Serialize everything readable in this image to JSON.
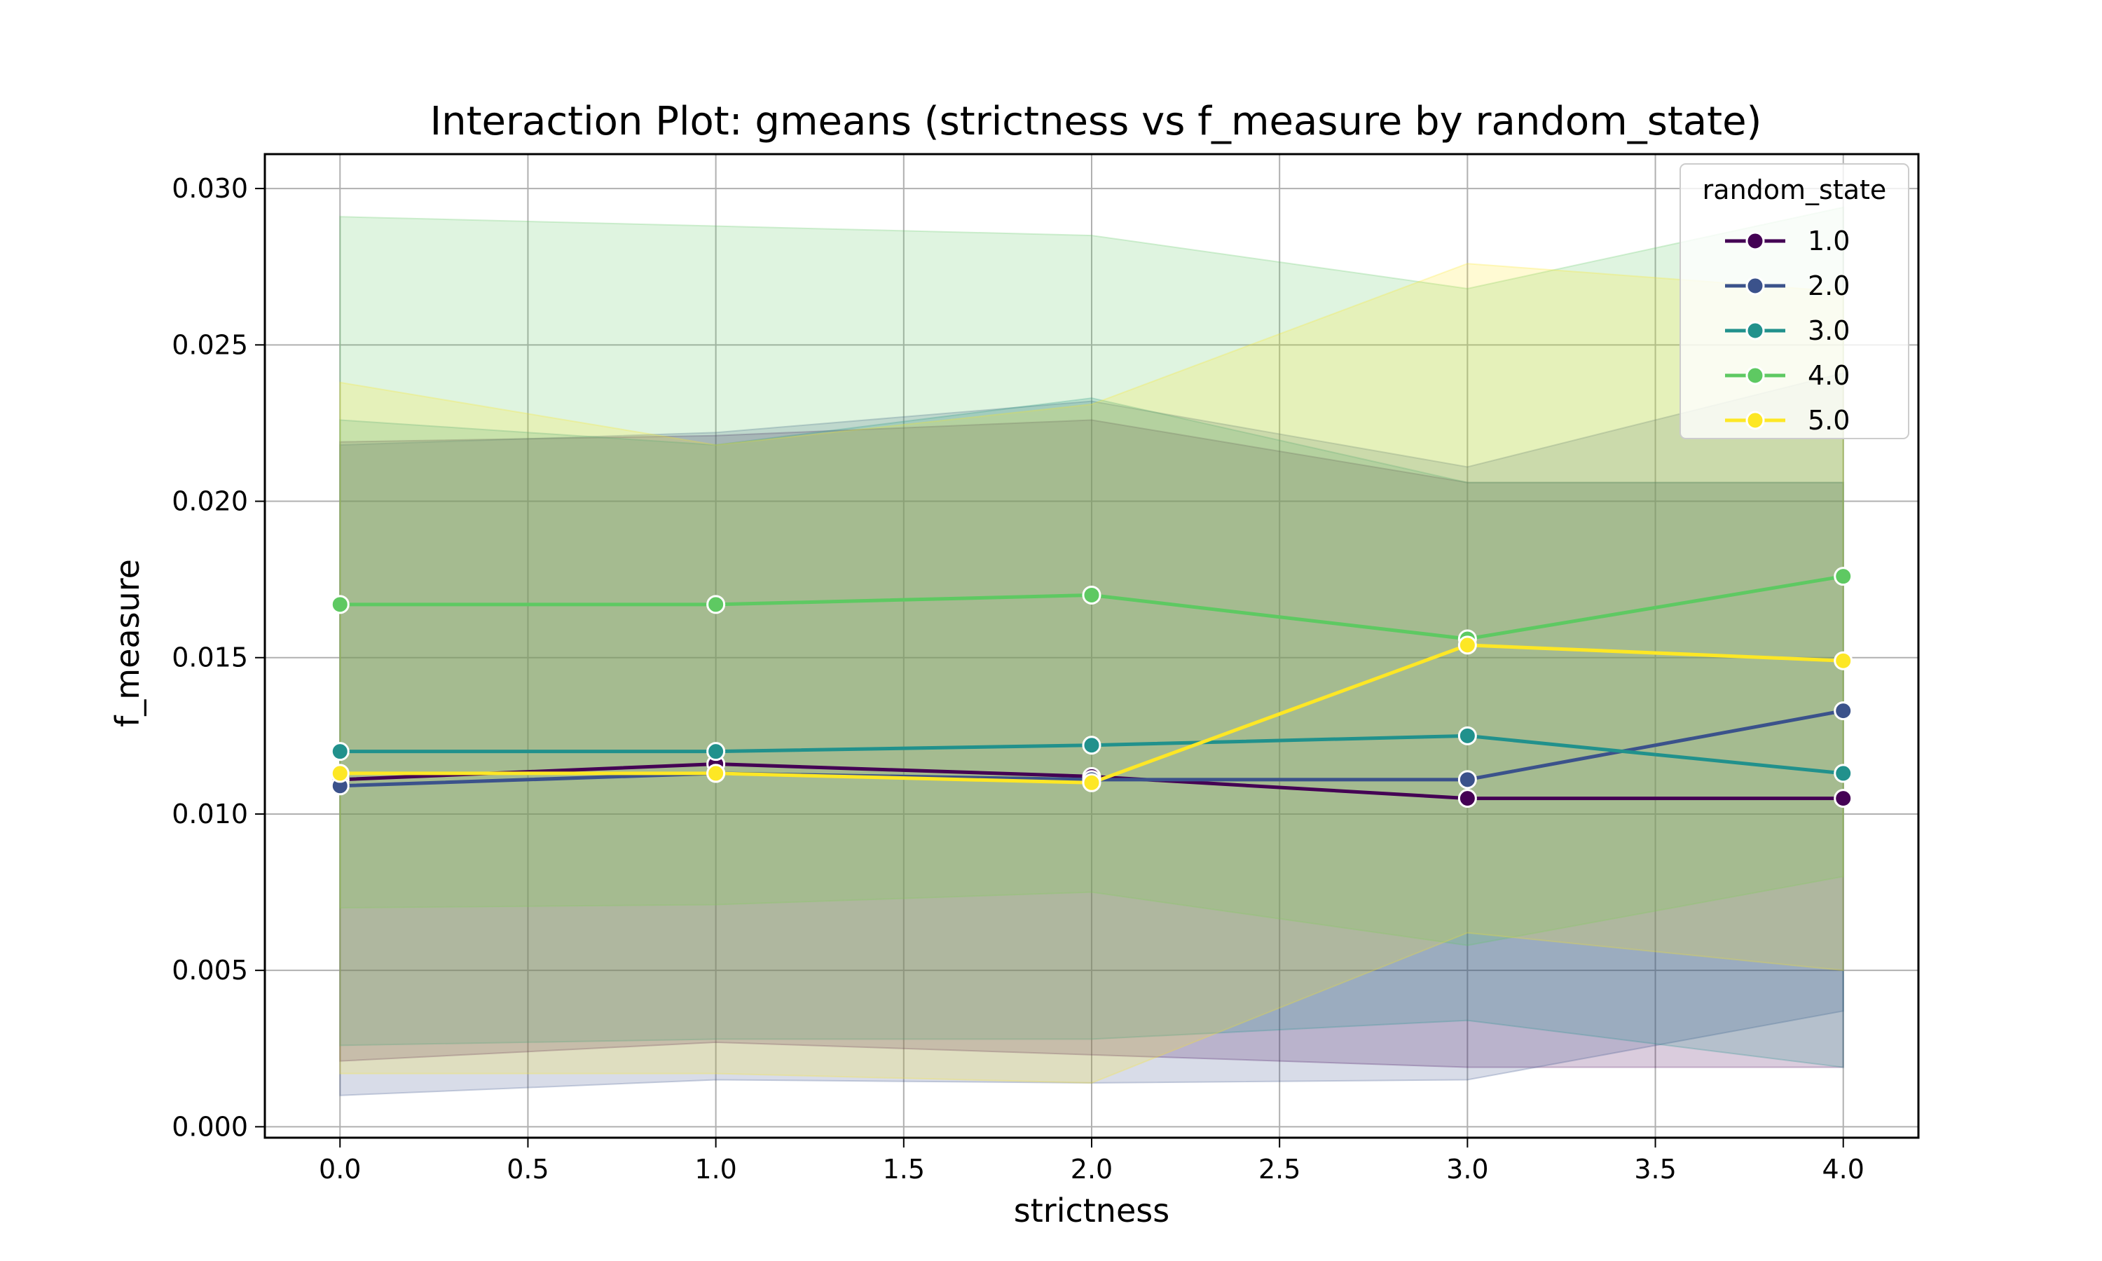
{
  "chart_data": {
    "type": "line",
    "title": "Interaction Plot: gmeans (strictness vs f_measure by random_state)",
    "xlabel": "strictness",
    "ylabel": "f_measure",
    "x": [
      0.0,
      1.0,
      2.0,
      3.0,
      4.0
    ],
    "xlim": [
      -0.2,
      4.2
    ],
    "ylim": [
      -0.00035,
      0.0311
    ],
    "xticks": [
      0.0,
      0.5,
      1.0,
      1.5,
      2.0,
      2.5,
      3.0,
      3.5,
      4.0
    ],
    "yticks": [
      0.0,
      0.005,
      0.01,
      0.015,
      0.02,
      0.025,
      0.03
    ],
    "xtick_labels": [
      "0.0",
      "0.5",
      "1.0",
      "1.5",
      "2.0",
      "2.5",
      "3.0",
      "3.5",
      "4.0"
    ],
    "ytick_labels": [
      "0.000",
      "0.005",
      "0.010",
      "0.015",
      "0.020",
      "0.025",
      "0.030"
    ],
    "grid": true,
    "legend": {
      "title": "random_state",
      "placement": "top-right"
    },
    "series": [
      {
        "name": "1.0",
        "color": "#440154",
        "values": [
          0.0111,
          0.0116,
          0.0112,
          0.0105,
          0.0105
        ],
        "ci_lower": [
          0.0021,
          0.0027,
          0.0023,
          0.0019,
          0.0019
        ],
        "ci_upper": [
          0.0219,
          0.0221,
          0.0226,
          0.0206,
          0.0206
        ]
      },
      {
        "name": "2.0",
        "color": "#3b528b",
        "values": [
          0.0109,
          0.0113,
          0.0111,
          0.0111,
          0.0133
        ],
        "ci_lower": [
          0.001,
          0.0015,
          0.0014,
          0.0015,
          0.0037
        ],
        "ci_upper": [
          0.0218,
          0.0222,
          0.0232,
          0.0211,
          0.0241
        ]
      },
      {
        "name": "3.0",
        "color": "#21918c",
        "values": [
          0.012,
          0.012,
          0.0122,
          0.0125,
          0.0113
        ],
        "ci_lower": [
          0.0026,
          0.0028,
          0.0028,
          0.0034,
          0.0019
        ],
        "ci_upper": [
          0.0226,
          0.0218,
          0.0233,
          0.0206,
          0.0206
        ]
      },
      {
        "name": "4.0",
        "color": "#5ec962",
        "values": [
          0.0167,
          0.0167,
          0.017,
          0.0156,
          0.0176
        ],
        "ci_lower": [
          0.007,
          0.0071,
          0.0075,
          0.0058,
          0.008
        ],
        "ci_upper": [
          0.0291,
          0.0288,
          0.0285,
          0.0268,
          0.0294
        ]
      },
      {
        "name": "5.0",
        "color": "#fde725",
        "values": [
          0.0113,
          0.0113,
          0.011,
          0.0154,
          0.0149
        ],
        "ci_lower": [
          0.0017,
          0.0017,
          0.0014,
          0.0062,
          0.005
        ],
        "ci_upper": [
          0.0238,
          0.0218,
          0.0231,
          0.0276,
          0.0267
        ]
      }
    ]
  }
}
